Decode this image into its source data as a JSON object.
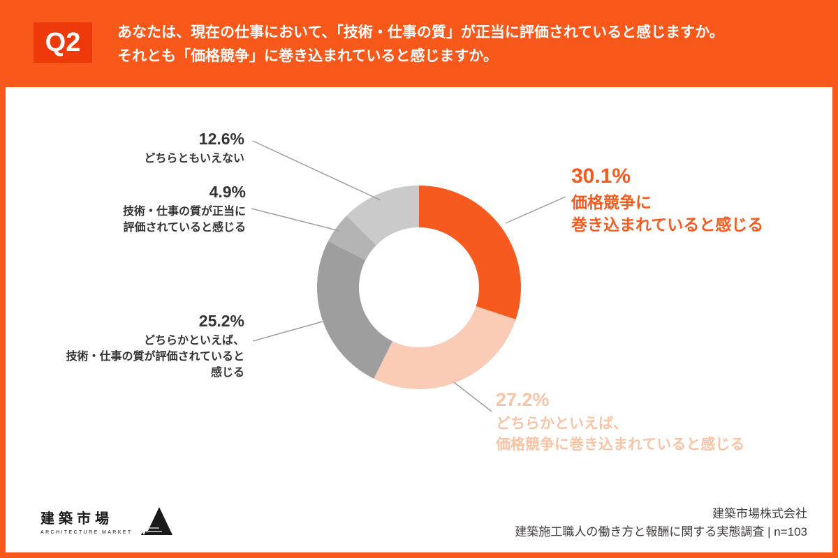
{
  "header": {
    "badge": "Q2",
    "question_line1": "あなたは、現在の仕事において、「技術・仕事の質」が正当に評価されていると感じますか。",
    "question_line2": "それとも「価格競争」に巻き込まれていると感じますか。"
  },
  "chart_data": {
    "type": "pie",
    "donut": true,
    "start_angle_deg": 0,
    "direction": "clockwise",
    "title": "",
    "n_label": "n=103",
    "segments": [
      {
        "label": "価格競争に巻き込まれていると感じる",
        "value": 30.1,
        "color": "#F75A1F"
      },
      {
        "label": "どちらかといえば、価格競争に巻き込まれていると感じる",
        "value": 27.2,
        "color": "#FACBB5"
      },
      {
        "label": "どちらかといえば、技術・仕事の質が評価されていると感じる",
        "value": 25.2,
        "color": "#9E9E9F"
      },
      {
        "label": "技術・仕事の質が正当に評価されていると感じる",
        "value": 4.9,
        "color": "#B4B4B5"
      },
      {
        "label": "どちらともいえない",
        "value": 12.6,
        "color": "#CACACB"
      }
    ]
  },
  "callouts": {
    "neutral": {
      "pct": "12.6%",
      "lines": [
        "どちらともいえない"
      ]
    },
    "evaluated": {
      "pct": "4.9%",
      "lines": [
        "技術・仕事の質が正当に",
        "評価されていると感じる"
      ]
    },
    "somewhat_evaluated": {
      "pct": "25.2%",
      "lines": [
        "どちらかといえば、",
        "技術・仕事の質が評価されていると",
        "感じる"
      ]
    },
    "price_competition": {
      "pct": "30.1%",
      "lines": [
        "価格競争に",
        "巻き込まれていると感じる"
      ]
    },
    "somewhat_price": {
      "pct": "27.2%",
      "lines": [
        "どちらかといえば、",
        "価格競争に巻き込まれていると感じる"
      ]
    }
  },
  "footer": {
    "logo_title": "建築市場",
    "logo_subtitle": "ARCHITECTURE MARKET",
    "company": "建築市場株式会社",
    "survey": "建築施工職人の働き方と報酬に関する実態調査 | n=103"
  },
  "colors": {
    "frame_orange": "#F8581A",
    "badge_orange": "#EE3A0B",
    "accent_orange": "#F75A1F",
    "accent_peach_text": "#F9C3A6",
    "slice_peach": "#FACBB5",
    "slice_gray": "#9E9E9F",
    "slice_gray_mid": "#B4B4B5",
    "slice_gray_light": "#CACACB",
    "text_dark": "#333333",
    "leader_line": "#9E9E9F"
  }
}
